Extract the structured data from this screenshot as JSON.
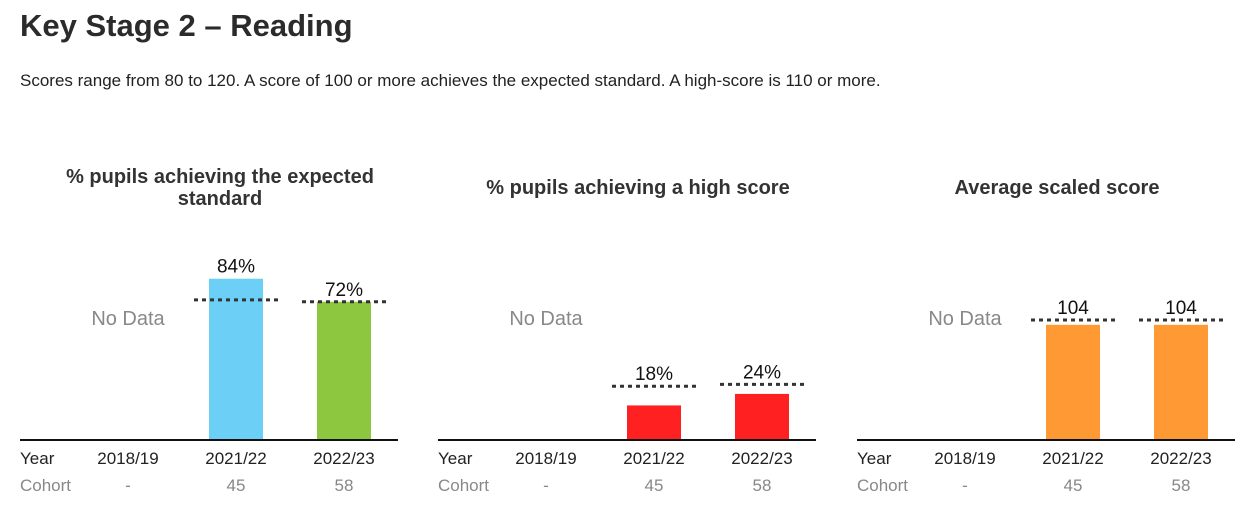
{
  "page": {
    "title": "Key Stage 2 – Reading",
    "subtitle": "Scores range from 80 to 120. A score of 100 or more achieves the expected standard. A high-score is 110 or more."
  },
  "row_labels": {
    "year": "Year",
    "cohort": "Cohort"
  },
  "no_data_label": "No Data",
  "chart_data": [
    {
      "type": "bar",
      "title": "% pupils achieving the expected standard",
      "categories": [
        "2018/19",
        "2021/22",
        "2022/23"
      ],
      "cohort": [
        "-",
        "45",
        "58"
      ],
      "values": [
        null,
        84,
        72
      ],
      "value_labels": [
        "",
        "84%",
        "72%"
      ],
      "benchmark": [
        null,
        73,
        72
      ],
      "colors": [
        "#6ccff6",
        "#6ccff6",
        "#8dc63f"
      ],
      "ylim": [
        0,
        100
      ]
    },
    {
      "type": "bar",
      "title": "% pupils achieving a high score",
      "categories": [
        "2018/19",
        "2021/22",
        "2022/23"
      ],
      "cohort": [
        "-",
        "45",
        "58"
      ],
      "values": [
        null,
        18,
        24
      ],
      "value_labels": [
        "",
        "18%",
        "24%"
      ],
      "benchmark": [
        null,
        28,
        29
      ],
      "colors": [
        "#ff2121",
        "#ff2121",
        "#ff2121"
      ],
      "ylim": [
        0,
        100
      ]
    },
    {
      "type": "bar",
      "title": "Average scaled score",
      "categories": [
        "2018/19",
        "2021/22",
        "2022/23"
      ],
      "cohort": [
        "-",
        "45",
        "58"
      ],
      "values": [
        null,
        104,
        104
      ],
      "value_labels": [
        "",
        "104",
        "104"
      ],
      "benchmark": [
        null,
        105,
        105
      ],
      "colors": [
        "#ff9933",
        "#ff9933",
        "#ff9933"
      ],
      "ylim": [
        80,
        120
      ]
    }
  ]
}
